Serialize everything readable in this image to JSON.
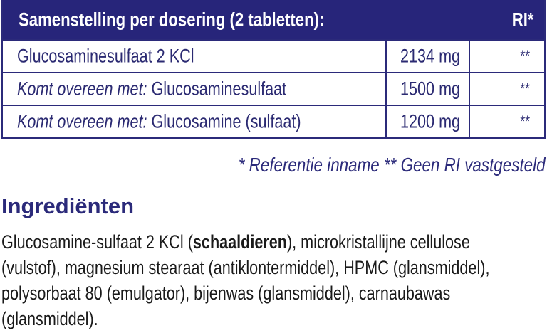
{
  "table": {
    "header": {
      "title": "Samenstelling per dosering (2 tabletten):",
      "ri": "RI*"
    },
    "rows": [
      {
        "prefix": "",
        "name": "Glucosaminesulfaat 2 KCl",
        "amount": "2134 mg",
        "ri": "**"
      },
      {
        "prefix": "Komt overeen met:",
        "name": " Glucosaminesulfaat",
        "amount": "1500 mg",
        "ri": "**"
      },
      {
        "prefix": "Komt overeen met:",
        "name": " Glucosamine (sulfaat)",
        "amount": "1200 mg",
        "ri": "**"
      }
    ]
  },
  "footnote": "* Referentie inname  ** Geen RI vastgesteld",
  "ingredients": {
    "heading": "Ingrediënten",
    "line1_pre": "Glucosamine-sulfaat 2 KCl (",
    "line1_bold": "schaaldieren",
    "line1_post": "), microkristallijne cellulose",
    "line2": "(vulstof), magnesium stearaat (antiklontermiddel), HPMC (glansmiddel),",
    "line3": "polysorbaat 80 (emulgator), bijenwas (glansmiddel), carnaubawas",
    "line4": "(glansmiddel)."
  },
  "colors": {
    "header_bg": "#27257a",
    "text": "#2b2a72"
  }
}
